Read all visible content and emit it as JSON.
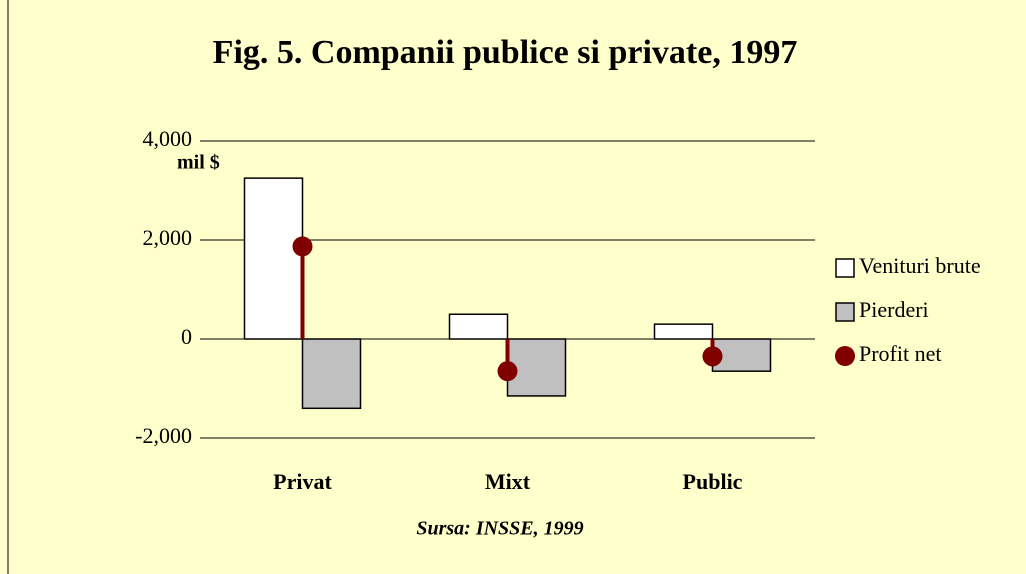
{
  "chart_data": {
    "type": "bar",
    "title": "Fig. 5. Companii publice si private, 1997",
    "y_label": "mil $",
    "source": "Sursa: INSSE, 1999",
    "categories": [
      "Privat",
      "Mixt",
      "Public"
    ],
    "series": [
      {
        "name": "Venituri brute",
        "color": "#ffffff",
        "values": [
          3250,
          500,
          300
        ]
      },
      {
        "name": "Pierderi",
        "color": "#c0c0c0",
        "values": [
          -1400,
          -1150,
          -650
        ]
      },
      {
        "name": "Profit net",
        "color": "#800000",
        "type": "dot",
        "values": [
          1870,
          -650,
          -350
        ]
      }
    ],
    "ylim": [
      -2000,
      4000
    ],
    "yticks": [
      {
        "value": -2000,
        "label": "-2,000"
      },
      0,
      {
        "value": 2000,
        "label": "2,000"
      },
      {
        "value": 4000,
        "label": "4,000"
      }
    ],
    "grid": true,
    "legend": "right"
  }
}
